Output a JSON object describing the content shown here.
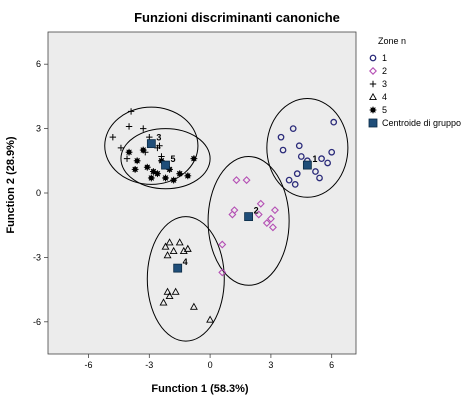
{
  "chart_data": {
    "type": "scatter",
    "title": "Funzioni discriminanti canoniche",
    "xlabel": "Function 1 (58.3%)",
    "ylabel": "Function 2 (28.9%)",
    "xlim": [
      -8,
      7.2
    ],
    "ylim": [
      -7.5,
      7.5
    ],
    "xticks": [
      "-6",
      "-3",
      "0",
      "3",
      "6"
    ],
    "yticks": [
      "6",
      "3",
      "0",
      "-3",
      "-6"
    ],
    "xtick_values": [
      -6,
      -3,
      0,
      3,
      6
    ],
    "ytick_values": [
      6,
      3,
      0,
      -3,
      -6
    ],
    "plot_background": "#ececec",
    "legend": {
      "title": "Zone n",
      "placement": "right",
      "entries": [
        {
          "label": "1",
          "marker": "circle",
          "color": "#2b2b7a"
        },
        {
          "label": "2",
          "marker": "diamond",
          "color": "#b44fb4"
        },
        {
          "label": "3",
          "marker": "plus",
          "color": "#000000"
        },
        {
          "label": "4",
          "marker": "triangle",
          "color": "#000000"
        },
        {
          "label": "5",
          "marker": "star",
          "color": "#000000"
        },
        {
          "label": "Centroide di gruppo",
          "marker": "square",
          "color": "#1f4e79"
        }
      ]
    },
    "series": [
      {
        "name": "1",
        "marker": "circle",
        "color": "#2b2b7a",
        "x": [
          4.1,
          3.5,
          3.6,
          4.4,
          4.5,
          4.8,
          5.5,
          5.8,
          6.0,
          6.1,
          5.2,
          5.4,
          4.2,
          4.3,
          3.9
        ],
        "y": [
          3.0,
          2.6,
          2.0,
          2.2,
          1.7,
          1.5,
          1.6,
          1.4,
          1.9,
          3.3,
          1.0,
          0.7,
          0.4,
          0.9,
          0.6
        ]
      },
      {
        "name": "2",
        "marker": "diamond",
        "color": "#b44fb4",
        "x": [
          1.3,
          1.8,
          1.9,
          2.4,
          3.0,
          3.2,
          3.1,
          2.8,
          1.2,
          0.6,
          0.6,
          1.1,
          2.5
        ],
        "y": [
          0.6,
          0.6,
          -1.1,
          -1.0,
          -1.2,
          -0.8,
          -1.6,
          -1.4,
          -0.8,
          -2.4,
          -3.7,
          -1.0,
          -0.5
        ]
      },
      {
        "name": "3",
        "marker": "plus",
        "color": "#000000",
        "x": [
          -4.8,
          -4.4,
          -4.0,
          -3.9,
          -3.3,
          -3.0,
          -2.6,
          -2.5,
          -4.1,
          -3.2,
          -2.4
        ],
        "y": [
          2.6,
          2.1,
          3.1,
          3.8,
          3.0,
          2.6,
          2.1,
          2.2,
          1.6,
          1.9,
          1.7
        ]
      },
      {
        "name": "4",
        "marker": "triangle",
        "color": "#000000",
        "x": [
          -2.2,
          -2.0,
          -2.1,
          -1.8,
          -1.5,
          -1.3,
          -1.1,
          -2.0,
          -2.1,
          -1.7,
          -2.3,
          -0.8,
          0.0
        ],
        "y": [
          -2.5,
          -2.3,
          -2.9,
          -2.7,
          -2.3,
          -2.7,
          -2.6,
          -4.8,
          -4.6,
          -4.6,
          -5.1,
          -5.3,
          -5.9
        ]
      },
      {
        "name": "5",
        "marker": "star",
        "color": "#000000",
        "x": [
          -4.0,
          -3.6,
          -3.3,
          -3.1,
          -2.8,
          -2.6,
          -2.2,
          -2.0,
          -1.8,
          -1.5,
          -1.1,
          -0.8,
          -3.7,
          -2.9,
          -2.4
        ],
        "y": [
          1.9,
          1.5,
          2.0,
          1.2,
          1.0,
          0.9,
          0.7,
          1.1,
          0.6,
          0.9,
          0.8,
          1.6,
          1.1,
          0.7,
          1.5
        ]
      }
    ],
    "centroids": [
      {
        "label": "1",
        "x": 4.8,
        "y": 1.3
      },
      {
        "label": "2",
        "x": 1.9,
        "y": -1.1
      },
      {
        "label": "3",
        "x": -2.9,
        "y": 2.3
      },
      {
        "label": "4",
        "x": -1.6,
        "y": -3.5
      },
      {
        "label": "5",
        "x": -2.2,
        "y": 1.3
      }
    ],
    "ellipses": [
      {
        "group": "1",
        "cx": 4.8,
        "cy": 2.1,
        "rx": 2.0,
        "ry": 2.3
      },
      {
        "group": "2",
        "cx": 1.9,
        "cy": -1.3,
        "rx": 2.0,
        "ry": 3.0
      },
      {
        "group": "3",
        "cx": -2.9,
        "cy": 2.2,
        "rx": 2.3,
        "ry": 1.8
      },
      {
        "group": "4",
        "cx": -1.2,
        "cy": -4.0,
        "rx": 1.9,
        "ry": 2.9
      },
      {
        "group": "5",
        "cx": -2.2,
        "cy": 1.6,
        "rx": 2.2,
        "ry": 1.4
      }
    ]
  }
}
